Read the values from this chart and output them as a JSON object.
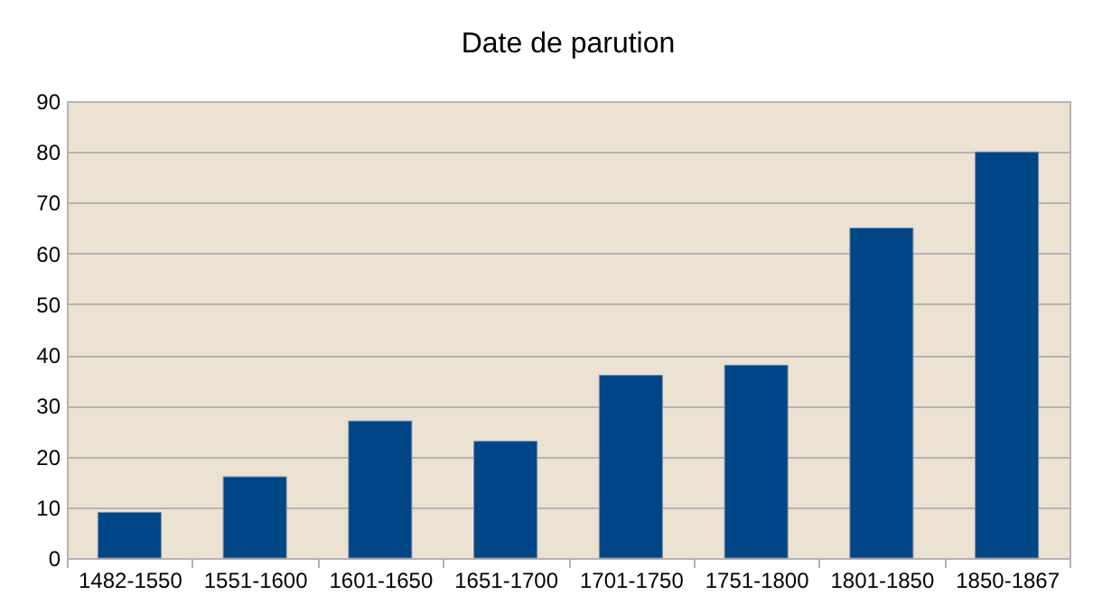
{
  "chart_data": {
    "type": "bar",
    "title": "Date de parution",
    "categories": [
      "1482-1550",
      "1551-1600",
      "1601-1650",
      "1651-1700",
      "1701-1750",
      "1751-1800",
      "1801-1850",
      "1850-1867"
    ],
    "values": [
      9,
      16,
      27,
      23,
      36,
      38,
      65,
      80
    ],
    "color": "#004586",
    "ylim": [
      0,
      90
    ],
    "yticks": [
      0,
      10,
      20,
      30,
      40,
      50,
      60,
      70,
      80,
      90
    ],
    "grid": "y"
  }
}
